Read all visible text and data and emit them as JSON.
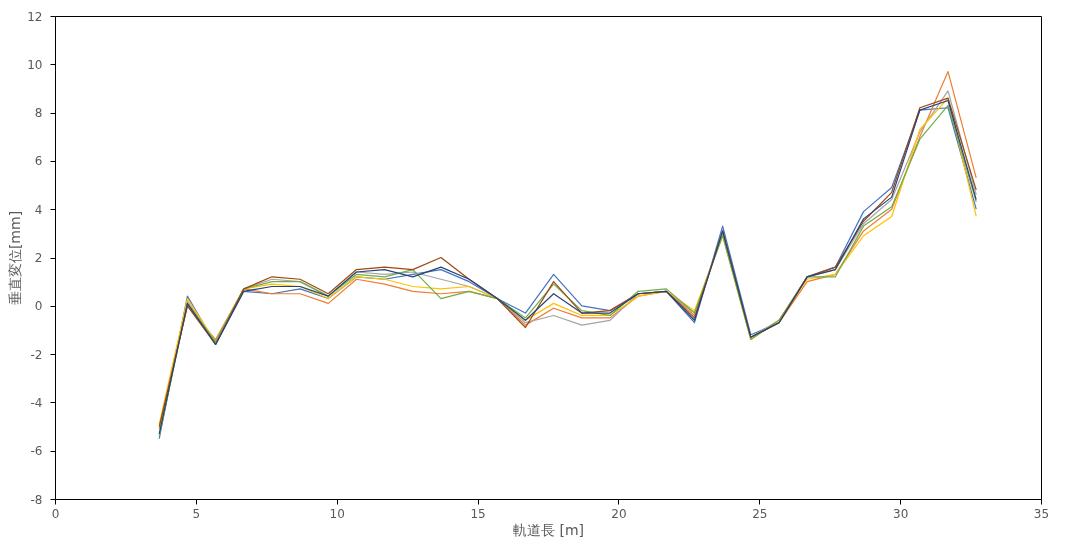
{
  "chart_data": {
    "type": "line",
    "xlabel": "軌道長 [m]",
    "ylabel": "垂直変位[mm]",
    "x": [
      3.7,
      4.7,
      5.7,
      6.7,
      7.7,
      8.7,
      9.7,
      10.7,
      11.7,
      12.7,
      13.7,
      14.7,
      15.7,
      16.7,
      17.7,
      18.7,
      19.7,
      20.7,
      21.7,
      22.7,
      23.7,
      24.7,
      25.7,
      26.7,
      27.7,
      28.7,
      29.7,
      30.7,
      31.7,
      32.7
    ],
    "xlim": [
      0,
      35
    ],
    "xticks": [
      0,
      5,
      10,
      15,
      20,
      25,
      30,
      35
    ],
    "ylim": [
      -8,
      12
    ],
    "yticks": [
      -8,
      -6,
      -4,
      -2,
      0,
      2,
      4,
      6,
      8,
      10,
      12
    ],
    "grid": false,
    "legend": false,
    "marker": "none",
    "line_style": "solid",
    "series": [
      {
        "color": "#4472c4",
        "values": [
          -5.5,
          0.4,
          -1.6,
          0.6,
          0.5,
          0.7,
          0.3,
          1.2,
          1.1,
          1.3,
          1.5,
          1.0,
          0.3,
          -0.3,
          1.3,
          0.0,
          -0.2,
          0.5,
          0.6,
          -0.7,
          3.3,
          -1.2,
          -0.7,
          1.2,
          1.6,
          3.9,
          4.9,
          8.1,
          8.2,
          4.0
        ]
      },
      {
        "color": "#ed7d31",
        "values": [
          -5.1,
          0.0,
          -1.4,
          0.7,
          0.5,
          0.5,
          0.1,
          1.1,
          0.9,
          0.6,
          0.5,
          0.6,
          0.3,
          -0.8,
          -0.1,
          -0.5,
          -0.5,
          0.4,
          0.6,
          -0.4,
          3.0,
          -1.3,
          -0.7,
          1.0,
          1.3,
          3.1,
          4.0,
          7.0,
          9.7,
          5.3
        ]
      },
      {
        "color": "#a5a5a5",
        "values": [
          -5.3,
          0.2,
          -1.5,
          0.7,
          1.1,
          1.0,
          0.4,
          1.4,
          1.3,
          1.4,
          1.1,
          0.8,
          0.3,
          -0.7,
          -0.4,
          -0.8,
          -0.6,
          0.5,
          0.6,
          -0.3,
          3.0,
          -1.3,
          -0.6,
          1.2,
          1.5,
          3.4,
          4.4,
          7.2,
          8.9,
          4.6
        ]
      },
      {
        "color": "#ffc000",
        "values": [
          -4.9,
          0.3,
          -1.5,
          0.7,
          0.9,
          0.8,
          0.3,
          1.2,
          1.1,
          0.8,
          0.7,
          0.8,
          0.3,
          -0.6,
          0.1,
          -0.4,
          -0.4,
          0.4,
          0.6,
          -0.2,
          2.9,
          -1.4,
          -0.6,
          1.1,
          1.3,
          2.9,
          3.7,
          7.3,
          8.6,
          3.7
        ]
      },
      {
        "color": "#70ad47",
        "values": [
          -5.4,
          0.1,
          -1.5,
          0.7,
          1.0,
          1.0,
          0.4,
          1.3,
          1.2,
          1.5,
          0.3,
          0.6,
          0.3,
          -0.5,
          0.9,
          -0.2,
          -0.4,
          0.6,
          0.7,
          -0.3,
          2.9,
          -1.4,
          -0.6,
          1.2,
          1.2,
          3.3,
          4.1,
          6.9,
          8.3,
          4.3
        ]
      },
      {
        "color": "#9e480e",
        "values": [
          -5.0,
          0.0,
          -1.6,
          0.7,
          1.2,
          1.1,
          0.5,
          1.5,
          1.6,
          1.5,
          2.0,
          1.1,
          0.3,
          -0.9,
          1.0,
          -0.3,
          -0.2,
          0.5,
          0.6,
          -0.5,
          3.1,
          -1.3,
          -0.7,
          1.2,
          1.6,
          3.5,
          4.7,
          8.2,
          8.6,
          4.8
        ]
      },
      {
        "color": "#264478",
        "values": [
          -5.3,
          0.1,
          -1.6,
          0.6,
          0.8,
          0.8,
          0.4,
          1.4,
          1.5,
          1.2,
          1.6,
          1.1,
          0.3,
          -0.6,
          0.5,
          -0.3,
          -0.3,
          0.5,
          0.6,
          -0.6,
          3.1,
          -1.3,
          -0.7,
          1.2,
          1.5,
          3.6,
          4.5,
          8.1,
          8.5,
          4.4
        ]
      }
    ]
  }
}
